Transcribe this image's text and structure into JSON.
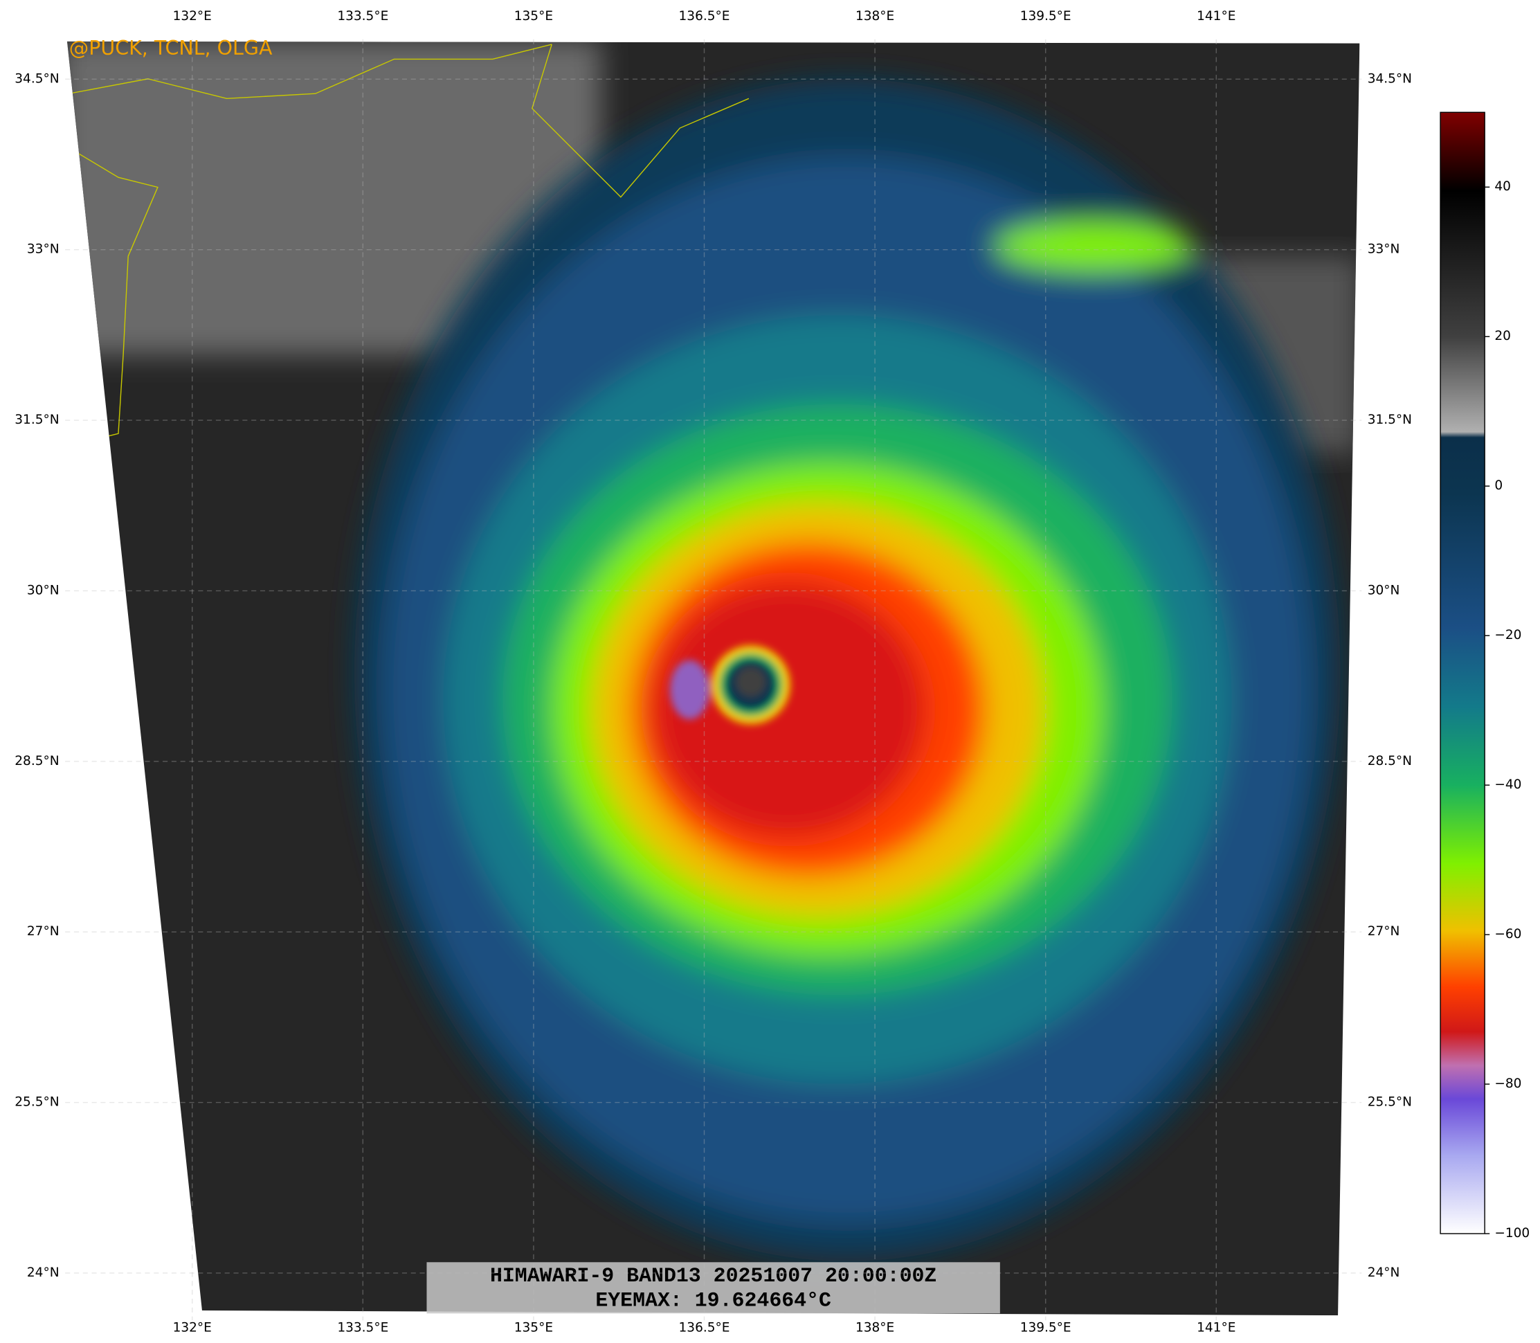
{
  "map": {
    "credit": "@PUCK, TCNL, OLGA",
    "title_lines": [
      "HIMAWARI-9 BAND13 20251007 20:00:00Z",
      "EYEMAX: 19.624664°C"
    ],
    "lon_ticks": [
      {
        "value": 132,
        "label": "132°E"
      },
      {
        "value": 133.5,
        "label": "133.5°E"
      },
      {
        "value": 135,
        "label": "135°E"
      },
      {
        "value": 136.5,
        "label": "136.5°E"
      },
      {
        "value": 138,
        "label": "138°E"
      },
      {
        "value": 139.5,
        "label": "139.5°E"
      },
      {
        "value": 141,
        "label": "141°E"
      }
    ],
    "lat_ticks": [
      {
        "value": 34.5,
        "label": "34.5°N"
      },
      {
        "value": 33,
        "label": "33°N"
      },
      {
        "value": 31.5,
        "label": "31.5°N"
      },
      {
        "value": 30,
        "label": "30°N"
      },
      {
        "value": 28.5,
        "label": "28.5°N"
      },
      {
        "value": 27,
        "label": "27°N"
      },
      {
        "value": 25.5,
        "label": "25.5°N"
      },
      {
        "value": 24,
        "label": "24°N"
      }
    ],
    "colorbar": {
      "range": [
        -100,
        50
      ],
      "ticks": [
        40,
        20,
        0,
        {
          "value": -20,
          "label": "−20"
        },
        {
          "value": -40,
          "label": "−40"
        },
        {
          "value": -60,
          "label": "−60"
        },
        {
          "value": -80,
          "label": "−80"
        },
        {
          "value": -100,
          "label": "−100"
        }
      ]
    }
  }
}
